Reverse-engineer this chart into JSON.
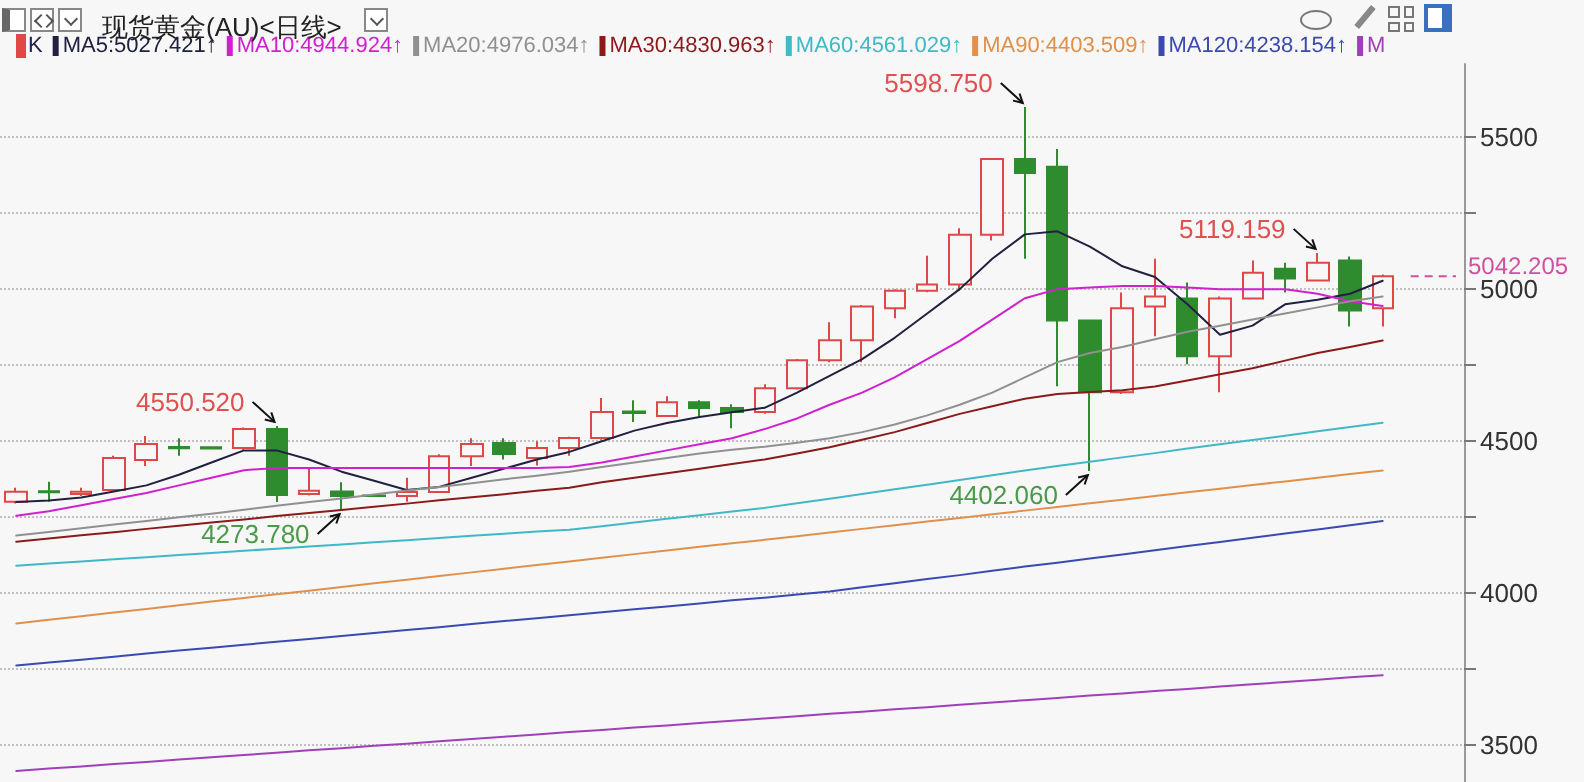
{
  "chart_data": {
    "type": "candlestick",
    "title": "现货黄金(AU)<日线>",
    "categories": [
      null,
      null,
      null,
      null,
      null,
      null,
      null,
      null,
      null,
      null,
      null,
      null,
      null,
      null,
      null,
      null,
      null,
      null,
      null,
      null,
      null,
      null,
      null,
      null,
      null,
      null,
      null,
      null,
      null,
      null,
      null,
      null,
      null,
      null,
      null,
      null,
      null,
      null,
      null,
      null,
      null,
      null,
      null
    ],
    "series": [
      {
        "type": "candlestick",
        "name": "K",
        "ohlc": [
          [
            4301,
            4347,
            4295,
            4334
          ],
          [
            4336,
            4367,
            4301,
            4332
          ],
          [
            4327,
            4347,
            4320,
            4334
          ],
          [
            4340,
            4452,
            4337,
            4445
          ],
          [
            4438,
            4517,
            4419,
            4491
          ],
          [
            4481,
            4510,
            4452,
            4477
          ],
          [
            4480,
            4482,
            4474,
            4476
          ],
          [
            4478,
            4545,
            4472,
            4540
          ],
          [
            4540,
            4550.52,
            4300,
            4323
          ],
          [
            4327,
            4412,
            4322,
            4337
          ],
          [
            4335,
            4365,
            4273.78,
            4320
          ],
          [
            4322,
            4324,
            4318,
            4320
          ],
          [
            4320,
            4380,
            4301,
            4333
          ],
          [
            4333,
            4457,
            4330,
            4451
          ],
          [
            4451,
            4510,
            4419,
            4491
          ],
          [
            4494,
            4510,
            4440,
            4458
          ],
          [
            4445,
            4500,
            4420,
            4478
          ],
          [
            4478,
            4515,
            4452,
            4511
          ],
          [
            4511,
            4642,
            4505,
            4596
          ],
          [
            4598,
            4635,
            4563,
            4593
          ],
          [
            4583,
            4648,
            4580,
            4628
          ],
          [
            4628,
            4635,
            4583,
            4609
          ],
          [
            4609,
            4622,
            4543,
            4596
          ],
          [
            4596,
            4687,
            4590,
            4674
          ],
          [
            4674,
            4770,
            4670,
            4766
          ],
          [
            4766,
            4891,
            4760,
            4832
          ],
          [
            4832,
            4948,
            4760,
            4943
          ],
          [
            4937,
            5000,
            4904,
            4995
          ],
          [
            4995,
            5110,
            4990,
            5015
          ],
          [
            5015,
            5200,
            4995,
            5179
          ],
          [
            5179,
            5428,
            5160,
            5428
          ],
          [
            5428,
            5598.75,
            5100,
            5382
          ],
          [
            5402,
            5461,
            4681,
            4897
          ],
          [
            4897,
            4897,
            4402.06,
            4661
          ],
          [
            4661,
            4989,
            4655,
            4937
          ],
          [
            4943,
            5100,
            4845,
            4976
          ],
          [
            4969,
            5022,
            4753,
            4779
          ],
          [
            4779,
            4976,
            4661,
            4969
          ],
          [
            4969,
            5094,
            4969,
            5054
          ],
          [
            5067,
            5087,
            4989,
            5035
          ],
          [
            5028,
            5119.159,
            5028,
            5087
          ],
          [
            5094,
            5107,
            4877,
            4930
          ],
          [
            4937,
            5048,
            4877,
            5042.205
          ]
        ],
        "colors": [
          "#e04848",
          "#2e8b2e",
          "#e04848",
          "#e04848",
          "#e04848",
          "#2e8b2e",
          "#2e8b2e",
          "#e04848",
          "#2e8b2e",
          "#e04848",
          "#2e8b2e",
          "#2e8b2e",
          "#e04848",
          "#e04848",
          "#e04848",
          "#2e8b2e",
          "#e04848",
          "#e04848",
          "#e04848",
          "#2e8b2e",
          "#e04848",
          "#2e8b2e",
          "#2e8b2e",
          "#e04848",
          "#e04848",
          "#e04848",
          "#e04848",
          "#e04848",
          "#e04848",
          "#e04848",
          "#e04848",
          "#2e8b2e",
          "#2e8b2e",
          "#2e8b2e",
          "#e04848",
          "#e04848",
          "#2e8b2e",
          "#e04848",
          "#e04848",
          "#2e8b2e",
          "#e04848",
          "#2e8b2e",
          "#e04848"
        ]
      },
      {
        "type": "line",
        "name": "MA5:5027.421↑",
        "color": "#202040",
        "values": [
          4300,
          4305,
          4315,
          4335,
          4355,
          4390,
          4430,
          4470,
          4470,
          4440,
          4400,
          4370,
          4340,
          4350,
          4380,
          4410,
          4440,
          4465,
          4500,
          4535,
          4560,
          4580,
          4595,
          4610,
          4660,
          4715,
          4770,
          4840,
          4920,
          5000,
          5100,
          5180,
          5190,
          5140,
          5075,
          5040,
          4950,
          4850,
          4880,
          4950,
          4965,
          4985,
          5027.421
        ]
      },
      {
        "type": "line",
        "name": "MA10:4944.924↑",
        "color": "#d020d0",
        "values": [
          4255,
          4270,
          4290,
          4310,
          4330,
          4355,
          4380,
          4405,
          4412,
          4412,
          4412,
          4412,
          4412,
          4412,
          4412,
          4412,
          4412,
          4415,
          4430,
          4450,
          4470,
          4490,
          4510,
          4540,
          4575,
          4620,
          4660,
          4710,
          4770,
          4830,
          4900,
          4970,
          5000,
          5005,
          5010,
          5010,
          5005,
          5000,
          5000,
          5000,
          4985,
          4960,
          4944.924
        ]
      },
      {
        "type": "line",
        "name": "MA20:4976.034↑",
        "color": "#909090",
        "values": [
          4190,
          4202,
          4214,
          4226,
          4238,
          4250,
          4262,
          4275,
          4288,
          4300,
          4312,
          4325,
          4338,
          4350,
          4362,
          4375,
          4387,
          4400,
          4415,
          4430,
          4445,
          4460,
          4472,
          4482,
          4495,
          4510,
          4530,
          4555,
          4585,
          4620,
          4660,
          4710,
          4760,
          4790,
          4810,
          4835,
          4860,
          4880,
          4900,
          4920,
          4940,
          4960,
          4976.034
        ]
      },
      {
        "type": "line",
        "name": "MA30:4830.963↑",
        "color": "#8b1a1a",
        "values": [
          4170,
          4180,
          4191,
          4201,
          4212,
          4222,
          4233,
          4243,
          4254,
          4264,
          4274,
          4285,
          4295,
          4306,
          4316,
          4326,
          4337,
          4347,
          4365,
          4380,
          4395,
          4410,
          4425,
          4440,
          4460,
          4480,
          4505,
          4530,
          4560,
          4590,
          4615,
          4640,
          4655,
          4662,
          4668,
          4680,
          4700,
          4720,
          4740,
          4765,
          4790,
          4810,
          4830.963
        ]
      },
      {
        "type": "line",
        "name": "MA60:4561.029↑",
        "color": "#40b8c8",
        "values": [
          4091,
          4098,
          4105,
          4112,
          4119,
          4126,
          4133,
          4140,
          4147,
          4154,
          4161,
          4168,
          4175,
          4182,
          4189,
          4196,
          4203,
          4209,
          4221,
          4233,
          4245,
          4257,
          4269,
          4281,
          4296,
          4311,
          4327,
          4342,
          4357,
          4373,
          4388,
          4404,
          4419,
          4433,
          4447,
          4461,
          4476,
          4490,
          4504,
          4518,
          4533,
          4547,
          4561.029
        ]
      },
      {
        "type": "line",
        "name": "MA90:4403.509↑",
        "color": "#e0904a",
        "values": [
          3901,
          3913,
          3925,
          3937,
          3949,
          3961,
          3973,
          3985,
          3997,
          4009,
          4021,
          4033,
          4045,
          4057,
          4069,
          4081,
          4093,
          4105,
          4117,
          4129,
          4141,
          4153,
          4165,
          4176,
          4188,
          4200,
          4212,
          4224,
          4236,
          4248,
          4260,
          4272,
          4284,
          4296,
          4308,
          4320,
          4332,
          4344,
          4356,
          4368,
          4380,
          4392,
          4403.509
        ]
      },
      {
        "type": "line",
        "name": "MA120:4238.154↑",
        "color": "#3a4ab0",
        "values": [
          3763,
          3773,
          3782,
          3792,
          3802,
          3812,
          3821,
          3831,
          3841,
          3850,
          3860,
          3870,
          3880,
          3889,
          3899,
          3909,
          3918,
          3928,
          3938,
          3948,
          3957,
          3967,
          3977,
          3986,
          3996,
          4006,
          4020,
          4033,
          4047,
          4060,
          4074,
          4088,
          4101,
          4115,
          4128,
          4142,
          4156,
          4169,
          4183,
          4197,
          4210,
          4224,
          4238.154
        ]
      },
      {
        "type": "line",
        "name": "M",
        "color": "#a040b8",
        "values": [
          3416,
          3424,
          3431,
          3439,
          3446,
          3454,
          3461,
          3469,
          3476,
          3484,
          3491,
          3499,
          3506,
          3514,
          3521,
          3529,
          3536,
          3544,
          3551,
          3559,
          3566,
          3574,
          3581,
          3589,
          3596,
          3604,
          3611,
          3619,
          3626,
          3634,
          3641,
          3649,
          3656,
          3664,
          3671,
          3679,
          3686,
          3694,
          3701,
          3709,
          3716,
          3724,
          3731
        ]
      }
    ],
    "ylim": [
      3380,
      5740
    ],
    "yticks": [
      3500,
      {
        "value": 3750,
        "label": null
      },
      4000,
      {
        "value": 4250,
        "label": null
      },
      4500,
      {
        "value": 4750,
        "label": null
      },
      5000,
      {
        "value": 5250,
        "label": null
      },
      5500
    ],
    "ref_lines": [
      {
        "axis": "y",
        "value": 5042.205,
        "label": "5042.205",
        "color": "#d050a0",
        "line_style": "dashed"
      }
    ],
    "annotations": [
      "5598.750",
      "4550.520",
      "5119.159",
      "4273.780",
      "4402.060"
    ],
    "grid": "y",
    "legend": "top left",
    "tick_labels": "y",
    "marker": "none",
    "line_style": "solid"
  }
}
